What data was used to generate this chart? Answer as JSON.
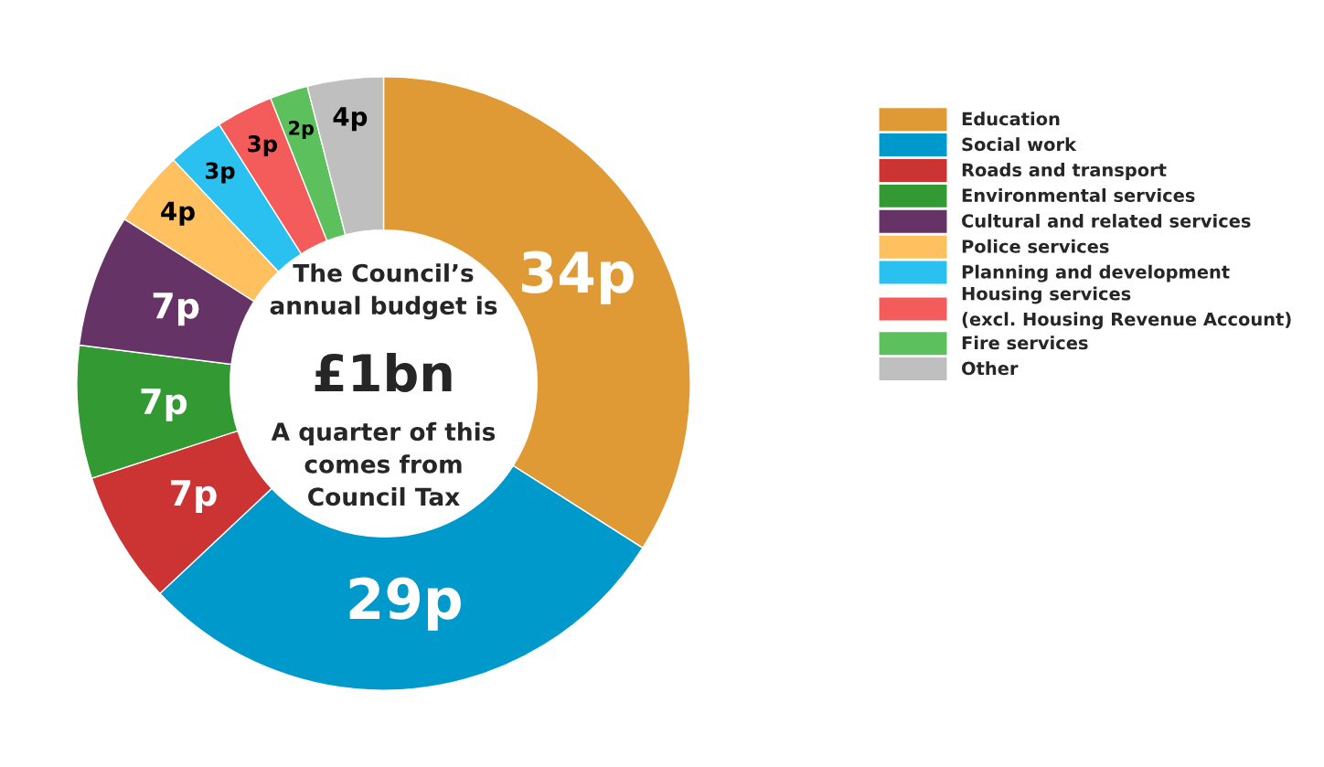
{
  "chart_data": {
    "type": "donut",
    "categories": [
      "Education",
      "Social work",
      "Roads and transport",
      "Environmental services",
      "Cultural and related services",
      "Police services",
      "Planning and development",
      "Housing services\n(excl. Housing Revenue Account)",
      "Fire services",
      "Other"
    ],
    "values": [
      34,
      29,
      7,
      7,
      7,
      4,
      3,
      3,
      2,
      4
    ],
    "colors": [
      "#e09a35",
      "#0099cc",
      "#cc3333",
      "#339933",
      "#663366",
      "#ffc060",
      "#2ac0f0",
      "#f45c5c",
      "#5cc05c",
      "#bfbfbf"
    ],
    "value_labels": [
      "34p",
      "29p",
      "7p",
      "7p",
      "7p",
      "4p",
      "3p",
      "3p",
      "2p",
      "4p"
    ],
    "annotations": [
      "The Council’s\nannual budget is",
      "£1bn",
      "A quarter of this\ncomes from\nCouncil Tax"
    ],
    "legend": "right"
  }
}
